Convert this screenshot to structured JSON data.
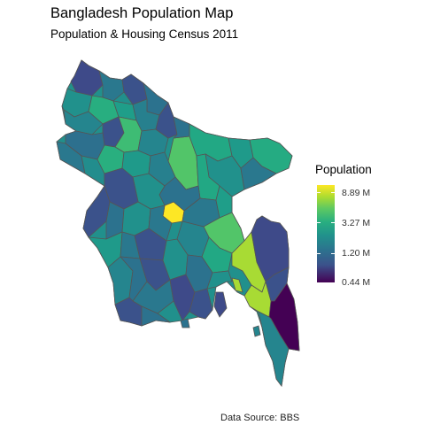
{
  "title": "Bangladesh Population Map",
  "subtitle": "Population & Housing Census 2011",
  "legend": {
    "title": "Population",
    "ticks": [
      "8.89 M",
      "3.27 M",
      "1.20 M",
      "0.44 M"
    ],
    "scale": "log",
    "palette": "viridis"
  },
  "source": "Data Source: BBS",
  "colors": {
    "low": "#440154",
    "mid_low": "#3b528b",
    "mid": "#21918c",
    "mid_high": "#5ec962",
    "high": "#fde725",
    "border": "#555555"
  }
}
